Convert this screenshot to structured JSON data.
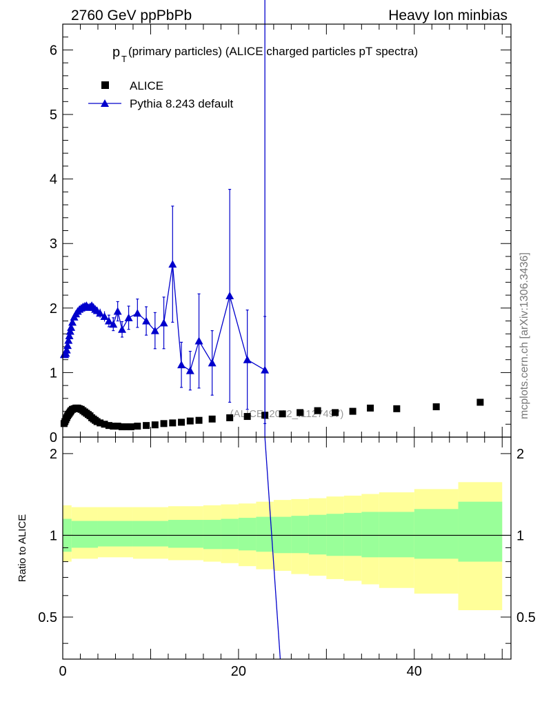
{
  "header": {
    "left": "2760 GeV ppPbPb",
    "right": "Heavy Ion minbias"
  },
  "side_label": "mcplots.cern.ch [arXiv:1306.3436]",
  "watermark": "(ALICE_2012_I1127497)",
  "chart_data": [
    {
      "type": "scatter",
      "title_main": "p",
      "title_sub": "T",
      "title_rest": "(primary particles) (ALICE charged particles pT spectra)",
      "xlim": [
        0,
        51
      ],
      "ylim": [
        0,
        6.4
      ],
      "x_ticks": [
        0,
        20,
        40
      ],
      "y_ticks": [
        0,
        1,
        2,
        3,
        4,
        5,
        6
      ],
      "y_tick_labels": [
        "0",
        "1",
        "2",
        "3",
        "4",
        "5",
        "6"
      ],
      "legend": {
        "position": "top-left"
      },
      "colors": {
        "data": "#000000",
        "mc": "#0000cc"
      },
      "series": [
        {
          "name": "ALICE",
          "marker": "square",
          "points": [
            [
              0.15,
              0.21
            ],
            [
              0.25,
              0.24
            ],
            [
              0.35,
              0.27
            ],
            [
              0.45,
              0.3
            ],
            [
              0.55,
              0.33
            ],
            [
              0.65,
              0.35
            ],
            [
              0.75,
              0.37
            ],
            [
              0.85,
              0.39
            ],
            [
              0.95,
              0.41
            ],
            [
              1.1,
              0.43
            ],
            [
              1.3,
              0.44
            ],
            [
              1.5,
              0.45
            ],
            [
              1.7,
              0.45
            ],
            [
              1.9,
              0.44
            ],
            [
              2.1,
              0.43
            ],
            [
              2.3,
              0.41
            ],
            [
              2.5,
              0.39
            ],
            [
              2.7,
              0.37
            ],
            [
              2.9,
              0.35
            ],
            [
              3.1,
              0.33
            ],
            [
              3.3,
              0.3
            ],
            [
              3.5,
              0.28
            ],
            [
              3.7,
              0.26
            ],
            [
              3.9,
              0.24
            ],
            [
              4.25,
              0.22
            ],
            [
              4.75,
              0.2
            ],
            [
              5.25,
              0.18
            ],
            [
              5.75,
              0.17
            ],
            [
              6.25,
              0.17
            ],
            [
              6.75,
              0.16
            ],
            [
              7.25,
              0.16
            ],
            [
              7.75,
              0.16
            ],
            [
              8.5,
              0.17
            ],
            [
              9.5,
              0.18
            ],
            [
              10.5,
              0.19
            ],
            [
              11.5,
              0.21
            ],
            [
              12.5,
              0.22
            ],
            [
              13.5,
              0.23
            ],
            [
              14.5,
              0.25
            ],
            [
              15.5,
              0.26
            ],
            [
              17,
              0.28
            ],
            [
              19,
              0.3
            ],
            [
              21,
              0.32
            ],
            [
              23,
              0.34
            ],
            [
              25,
              0.36
            ],
            [
              27,
              0.38
            ],
            [
              29,
              0.41
            ],
            [
              31,
              0.38
            ],
            [
              33,
              0.4
            ],
            [
              35,
              0.45
            ],
            [
              38,
              0.44
            ],
            [
              42.5,
              0.47
            ],
            [
              47.5,
              0.54
            ]
          ]
        },
        {
          "name": "Pythia 8.243 default",
          "marker": "triangle",
          "points": [
            [
              0.15,
              1.28,
              0.03
            ],
            [
              0.25,
              1.28,
              0.03
            ],
            [
              0.35,
              1.3,
              0.03
            ],
            [
              0.45,
              1.35,
              0.03
            ],
            [
              0.55,
              1.42,
              0.03
            ],
            [
              0.65,
              1.5,
              0.03
            ],
            [
              0.75,
              1.57,
              0.03
            ],
            [
              0.85,
              1.64,
              0.03
            ],
            [
              0.95,
              1.7,
              0.03
            ],
            [
              1.1,
              1.78,
              0.03
            ],
            [
              1.3,
              1.86,
              0.03
            ],
            [
              1.5,
              1.91,
              0.04
            ],
            [
              1.7,
              1.95,
              0.04
            ],
            [
              1.9,
              1.98,
              0.04
            ],
            [
              2.1,
              2.0,
              0.04
            ],
            [
              2.3,
              2.02,
              0.04
            ],
            [
              2.5,
              2.03,
              0.04
            ],
            [
              2.7,
              2.04,
              0.05
            ],
            [
              2.9,
              2.01,
              0.05
            ],
            [
              3.1,
              2.02,
              0.05
            ],
            [
              3.3,
              2.04,
              0.05
            ],
            [
              3.5,
              2.01,
              0.06
            ],
            [
              3.7,
              1.98,
              0.06
            ],
            [
              3.9,
              1.96,
              0.06
            ],
            [
              4.25,
              1.92,
              0.07
            ],
            [
              4.75,
              1.87,
              0.08
            ],
            [
              5.25,
              1.8,
              0.09
            ],
            [
              5.75,
              1.75,
              0.1
            ],
            [
              6.25,
              1.95,
              0.15
            ],
            [
              6.75,
              1.67,
              0.12
            ],
            [
              7.5,
              1.85,
              0.18
            ],
            [
              8.5,
              1.92,
              0.22
            ],
            [
              9.5,
              1.8,
              0.22
            ],
            [
              10.5,
              1.65,
              0.28
            ],
            [
              11.5,
              1.77,
              0.4
            ],
            [
              12.5,
              2.68,
              0.9
            ],
            [
              13.5,
              1.12,
              0.35
            ],
            [
              14.5,
              1.03,
              0.3
            ],
            [
              15.5,
              1.49,
              0.73
            ],
            [
              17,
              1.15,
              0.5
            ],
            [
              19,
              2.19,
              1.65
            ],
            [
              21,
              1.2,
              0.77
            ],
            [
              23,
              1.04,
              0.83
            ]
          ],
          "spike_x": 23
        }
      ]
    },
    {
      "type": "line",
      "ylabel": "Ratio to ALICE",
      "xlim": [
        0,
        51
      ],
      "ylim": [
        0.35,
        2.3
      ],
      "x_ticks": [
        0,
        20,
        40
      ],
      "x_tick_labels": [
        "0",
        "20",
        "40"
      ],
      "y_ticks": [
        0.5,
        1,
        2
      ],
      "y_tick_labels": [
        "0.5",
        "1",
        "2"
      ],
      "band_colors": {
        "outer": "#ffff99",
        "inner": "#99ff99"
      },
      "bands": [
        {
          "x0": 0,
          "x1": 1,
          "outer": [
            0.8,
            1.29
          ],
          "inner": [
            0.87,
            1.15
          ]
        },
        {
          "x0": 1,
          "x1": 4,
          "outer": [
            0.82,
            1.27
          ],
          "inner": [
            0.9,
            1.13
          ]
        },
        {
          "x0": 4,
          "x1": 8,
          "outer": [
            0.83,
            1.27
          ],
          "inner": [
            0.91,
            1.13
          ]
        },
        {
          "x0": 8,
          "x1": 12,
          "outer": [
            0.82,
            1.27
          ],
          "inner": [
            0.91,
            1.13
          ]
        },
        {
          "x0": 12,
          "x1": 16,
          "outer": [
            0.81,
            1.28
          ],
          "inner": [
            0.9,
            1.14
          ]
        },
        {
          "x0": 16,
          "x1": 18,
          "outer": [
            0.8,
            1.29
          ],
          "inner": [
            0.89,
            1.14
          ]
        },
        {
          "x0": 18,
          "x1": 20,
          "outer": [
            0.79,
            1.3
          ],
          "inner": [
            0.89,
            1.15
          ]
        },
        {
          "x0": 20,
          "x1": 22,
          "outer": [
            0.77,
            1.31
          ],
          "inner": [
            0.88,
            1.16
          ]
        },
        {
          "x0": 22,
          "x1": 24,
          "outer": [
            0.75,
            1.33
          ],
          "inner": [
            0.87,
            1.17
          ]
        },
        {
          "x0": 24,
          "x1": 26,
          "outer": [
            0.74,
            1.35
          ],
          "inner": [
            0.86,
            1.17
          ]
        },
        {
          "x0": 26,
          "x1": 28,
          "outer": [
            0.72,
            1.36
          ],
          "inner": [
            0.86,
            1.18
          ]
        },
        {
          "x0": 28,
          "x1": 30,
          "outer": [
            0.71,
            1.37
          ],
          "inner": [
            0.85,
            1.19
          ]
        },
        {
          "x0": 30,
          "x1": 32,
          "outer": [
            0.69,
            1.39
          ],
          "inner": [
            0.84,
            1.2
          ]
        },
        {
          "x0": 32,
          "x1": 34,
          "outer": [
            0.68,
            1.4
          ],
          "inner": [
            0.84,
            1.21
          ]
        },
        {
          "x0": 34,
          "x1": 36,
          "outer": [
            0.66,
            1.42
          ],
          "inner": [
            0.83,
            1.22
          ]
        },
        {
          "x0": 36,
          "x1": 40,
          "outer": [
            0.64,
            1.44
          ],
          "inner": [
            0.83,
            1.22
          ]
        },
        {
          "x0": 40,
          "x1": 45,
          "outer": [
            0.61,
            1.48
          ],
          "inner": [
            0.82,
            1.25
          ]
        },
        {
          "x0": 45,
          "x1": 50,
          "outer": [
            0.53,
            1.57
          ],
          "inner": [
            0.8,
            1.33
          ]
        }
      ],
      "reference_y": 1,
      "mc_line": [
        [
          23.0,
          2.3
        ],
        [
          24.75,
          0.35
        ]
      ]
    }
  ]
}
